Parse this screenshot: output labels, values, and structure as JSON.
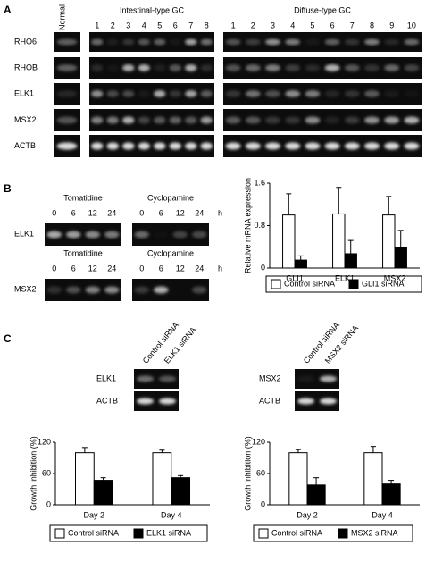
{
  "panels": {
    "a": {
      "label": "A",
      "normal": "Normal",
      "intestinal": "Intestinal-type GC",
      "diffuse": "Diffuse-type GC",
      "intestinal_lanes": [
        1,
        2,
        3,
        4,
        5,
        6,
        7,
        8
      ],
      "diffuse_lanes": [
        1,
        2,
        3,
        4,
        5,
        6,
        7,
        8,
        9,
        10
      ],
      "genes": [
        "RHO6",
        "RHOB",
        "ELK1",
        "MSX2",
        "ACTB"
      ]
    },
    "b": {
      "label": "B",
      "treatments": [
        "Tomatidine",
        "Cyclopamine"
      ],
      "times": [
        0,
        6,
        12,
        24
      ],
      "unit": "h",
      "genes": [
        "ELK1",
        "MSX2"
      ]
    },
    "c": {
      "label": "C",
      "left": {
        "lanes": [
          "Control siRNA",
          "ELK1 siRNA"
        ],
        "genes": [
          "ELK1",
          "ACTB"
        ]
      },
      "right": {
        "lanes": [
          "Control siRNA",
          "MSX2 siRNA"
        ],
        "genes": [
          "MSX2",
          "ACTB"
        ]
      }
    }
  },
  "chart_data": [
    {
      "type": "bar",
      "y_label": "Relative mRNA expression",
      "categories": [
        "GLI1",
        "ELK1",
        "MSX2"
      ],
      "series": [
        {
          "name": "Control siRNA",
          "color": "#ffffff",
          "values": [
            1.0,
            1.02,
            1.0
          ],
          "errors": [
            0.4,
            0.5,
            0.35
          ]
        },
        {
          "name": "GLI1 siRNA",
          "color": "#000000",
          "values": [
            0.15,
            0.27,
            0.38
          ],
          "errors": [
            0.08,
            0.25,
            0.33
          ]
        }
      ],
      "ylim": [
        0,
        1.6
      ],
      "yticks": [
        0,
        0.8,
        1.6
      ]
    },
    {
      "type": "bar",
      "y_label": "Growth inhibition (%)",
      "categories": [
        "Day 2",
        "Day 4"
      ],
      "series": [
        {
          "name": "Control siRNA",
          "color": "#ffffff",
          "values": [
            100,
            100
          ],
          "errors": [
            10,
            5
          ]
        },
        {
          "name": "ELK1 siRNA",
          "color": "#000000",
          "values": [
            47,
            52
          ],
          "errors": [
            5,
            4
          ]
        }
      ],
      "ylim": [
        0,
        120
      ],
      "yticks": [
        0,
        60,
        120
      ]
    },
    {
      "type": "bar",
      "y_label": "Growth inhibition (%)",
      "categories": [
        "Day 2",
        "Day 4"
      ],
      "series": [
        {
          "name": "Control siRNA",
          "color": "#ffffff",
          "values": [
            100,
            100
          ],
          "errors": [
            6,
            12
          ]
        },
        {
          "name": "MSX2 siRNA",
          "color": "#000000",
          "values": [
            38,
            40
          ],
          "errors": [
            14,
            7
          ]
        }
      ],
      "ylim": [
        0,
        120
      ],
      "yticks": [
        0,
        60,
        120
      ]
    }
  ]
}
